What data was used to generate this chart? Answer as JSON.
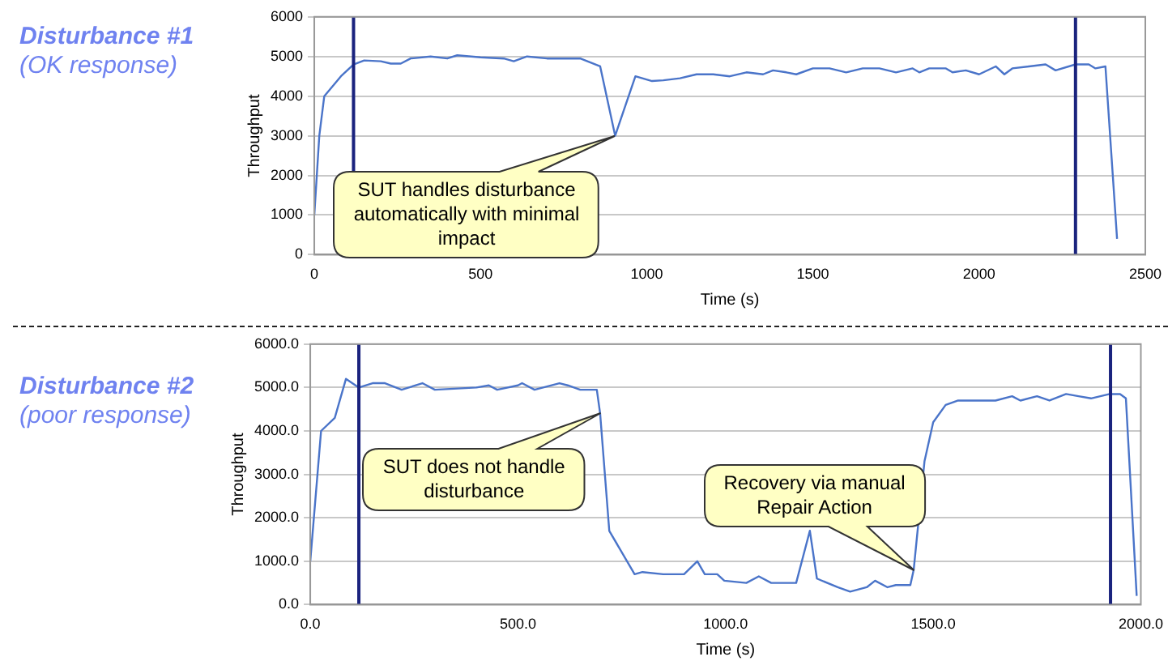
{
  "chart_data": [
    {
      "type": "line",
      "title": "Disturbance #1",
      "subtitle": "(OK response)",
      "xlabel": "Time (s)",
      "ylabel": "Throughput",
      "x": [
        0,
        15,
        30,
        80,
        118,
        150,
        200,
        230,
        260,
        290,
        350,
        400,
        430,
        500,
        570,
        600,
        640,
        700,
        800,
        860,
        905,
        966,
        1016,
        1050,
        1100,
        1150,
        1200,
        1250,
        1300,
        1350,
        1380,
        1420,
        1450,
        1500,
        1550,
        1600,
        1650,
        1700,
        1750,
        1800,
        1820,
        1850,
        1900,
        1920,
        1960,
        2000,
        2050,
        2076,
        2100,
        2150,
        2200,
        2230,
        2290,
        2330,
        2350,
        2380,
        2415
      ],
      "series": [
        {
          "color": "#4a74c9",
          "values": [
            1000,
            3000,
            4000,
            4500,
            4800,
            4900,
            4880,
            4820,
            4820,
            4950,
            5000,
            4950,
            5030,
            4980,
            4950,
            4880,
            5000,
            4950,
            4950,
            4750,
            3000,
            4500,
            4380,
            4400,
            4450,
            4550,
            4550,
            4500,
            4600,
            4550,
            4650,
            4600,
            4550,
            4700,
            4700,
            4600,
            4700,
            4700,
            4600,
            4700,
            4600,
            4700,
            4700,
            4600,
            4650,
            4550,
            4750,
            4550,
            4700,
            4750,
            4800,
            4650,
            4800,
            4800,
            4700,
            4750,
            400
          ]
        }
      ],
      "xlim": [
        0,
        2500
      ],
      "xticks": [
        0,
        500,
        1000,
        1500,
        2000,
        2500
      ],
      "ylim": [
        0,
        6000
      ],
      "yticks": [
        0,
        1000,
        2000,
        3000,
        4000,
        5000,
        6000
      ],
      "grid": "y",
      "legend": false,
      "marker": "none",
      "ref_lines": [
        {
          "axis": "x",
          "value": 118,
          "color": "#1a237e"
        },
        {
          "axis": "x",
          "value": 2290,
          "color": "#1a237e"
        }
      ],
      "annotations": [
        {
          "text": "SUT handles disturbance automatically with minimal impact",
          "x": 905,
          "y": 3000
        }
      ]
    },
    {
      "type": "line",
      "title": "Disturbance #2",
      "subtitle": "(poor response)",
      "xlabel": "Time (s)",
      "ylabel": "Throughput",
      "x": [
        0,
        26,
        59,
        86,
        117,
        150,
        180,
        220,
        270,
        300,
        400,
        430,
        450,
        500,
        510,
        540,
        600,
        620,
        650,
        690,
        698,
        720,
        781,
        800,
        850,
        900,
        932,
        950,
        980,
        997,
        1050,
        1080,
        1110,
        1170,
        1203,
        1220,
        1270,
        1300,
        1340,
        1360,
        1390,
        1410,
        1445,
        1453,
        1479,
        1500,
        1530,
        1560,
        1650,
        1690,
        1710,
        1750,
        1780,
        1820,
        1850,
        1880,
        1925,
        1950,
        1964,
        1990
      ],
      "series": [
        {
          "color": "#4a74c9",
          "values": [
            1000,
            4000,
            4300,
            5200,
            5000,
            5100,
            5100,
            4950,
            5100,
            4950,
            5000,
            5050,
            4950,
            5050,
            5100,
            4950,
            5100,
            5050,
            4950,
            4950,
            4400,
            1700,
            700,
            750,
            700,
            700,
            1000,
            700,
            700,
            550,
            500,
            650,
            500,
            500,
            1700,
            600,
            400,
            300,
            400,
            550,
            400,
            450,
            450,
            800,
            3300,
            4200,
            4600,
            4700,
            4700,
            4800,
            4700,
            4800,
            4700,
            4850,
            4800,
            4750,
            4850,
            4850,
            4750,
            200
          ]
        }
      ],
      "xlim": [
        0,
        2000
      ],
      "xticks": [
        {
          "value": 0,
          "label": "0.0"
        },
        {
          "value": 500,
          "label": "500.0"
        },
        {
          "value": 1000,
          "label": "1000.0"
        },
        {
          "value": 1500,
          "label": "1500.0"
        },
        {
          "value": 2000,
          "label": "2000.0"
        }
      ],
      "ylim": [
        0,
        6000
      ],
      "yticks": [
        {
          "value": 0,
          "label": "0.0"
        },
        {
          "value": 1000,
          "label": "1000.0"
        },
        {
          "value": 2000,
          "label": "2000.0"
        },
        {
          "value": 3000,
          "label": "3000.0"
        },
        {
          "value": 4000,
          "label": "4000.0"
        },
        {
          "value": 5000,
          "label": "5000.0"
        },
        {
          "value": 6000,
          "label": "6000.0"
        }
      ],
      "grid": "y",
      "legend": false,
      "marker": "none",
      "ref_lines": [
        {
          "axis": "x",
          "value": 117,
          "color": "#1a237e"
        },
        {
          "axis": "x",
          "value": 1927,
          "color": "#1a237e"
        }
      ],
      "annotations": [
        {
          "text": "SUT does not handle disturbance",
          "x": 700,
          "y": 4400
        },
        {
          "text": "Recovery via manual Repair Action",
          "x": 1453,
          "y": 800
        }
      ]
    }
  ]
}
